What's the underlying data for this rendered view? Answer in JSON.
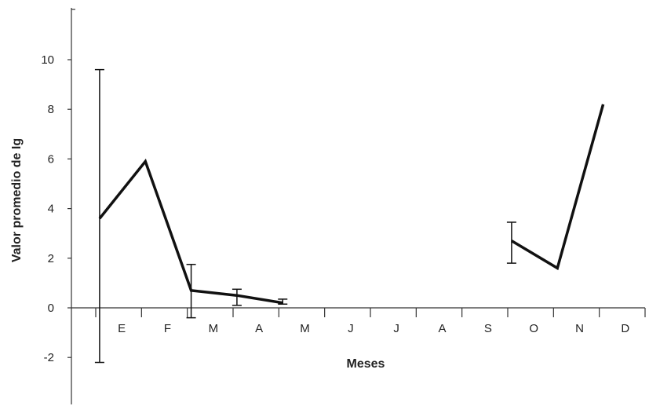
{
  "chart_data": {
    "type": "line",
    "title": "",
    "xlabel": "Meses",
    "ylabel": "Valor promedio de Ig",
    "categories": [
      "E",
      "F",
      "M",
      "A",
      "M",
      "J",
      "J",
      "A",
      "S",
      "O",
      "N",
      "D"
    ],
    "ylim": [
      -3.5,
      12
    ],
    "yticks": [
      -2,
      0,
      2,
      4,
      6,
      8,
      10
    ],
    "ytick_labels": [
      "-2",
      "0",
      "2",
      "4",
      "6",
      "8",
      "10"
    ],
    "grid": false,
    "series": [
      {
        "values": [
          3.6,
          5.9,
          0.7,
          0.5,
          0.2,
          null,
          null,
          null,
          null,
          2.7,
          1.6,
          8.2
        ],
        "error_low": [
          -2.2,
          null,
          -0.4,
          0.1,
          0.15,
          null,
          null,
          null,
          null,
          1.8,
          null,
          null
        ],
        "error_high": [
          9.6,
          null,
          1.75,
          0.75,
          0.35,
          null,
          null,
          null,
          null,
          3.45,
          null,
          null
        ]
      }
    ],
    "colors": {
      "line": "#111111",
      "axis": "#333333"
    }
  }
}
